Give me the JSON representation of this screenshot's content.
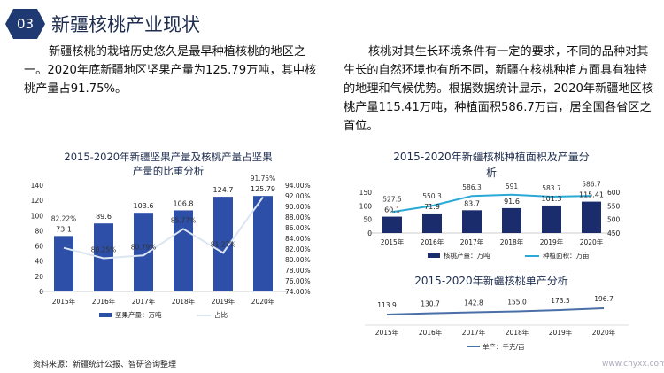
{
  "header": {
    "number": "03",
    "title": "新疆核桃产业现状"
  },
  "paragraph_left": "新疆核桃的栽培历史悠久是最早种植核桃的地区之一。2020年底新疆地区坚果产量为125.79万吨，其中核桃产量占91.75%。",
  "paragraph_right": "核桃对其生长环境条件有一定的要求，不同的品种对其生长的自然环境也有所不同，新疆在核桃种植方面具有独特的地理和气候优势。根据数据统计显示，2020年新疆地区核桃产量115.41万吨，种植面积586.7万亩，居全国各省区之首位。",
  "footer": {
    "source": "资料来源：新疆统计公报、智研咨询整理",
    "site": "www.chyxx.com"
  },
  "colors": {
    "bar": "#2e4fa8",
    "bar_dark": "#1a2c6b",
    "line_light": "#dce6f2",
    "line_teal": "#29a9d6",
    "line_blue": "#4a6fa8"
  },
  "chart_data": [
    {
      "type": "bar",
      "title_lines": [
        "2015-2020年新疆坚果产量及核桃产量占坚果",
        "产量的比重分析"
      ],
      "categories": [
        "2015年",
        "2016年",
        "2017年",
        "2018年",
        "2019年",
        "2020年"
      ],
      "series": [
        {
          "name": "坚果产量：万吨",
          "type": "bar",
          "axis": "left",
          "values": [
            73.1,
            89.6,
            103.6,
            106.8,
            124.7,
            125.79
          ],
          "labels": [
            "73.1",
            "89.6",
            "103.6",
            "106.8",
            "124.7",
            "125.79"
          ]
        },
        {
          "name": "占比",
          "type": "line",
          "axis": "right",
          "values": [
            82.22,
            80.25,
            80.79,
            85.77,
            81.27,
            91.75
          ],
          "labels": [
            "82.22%",
            "80.25%",
            "80.79%",
            "85.77%",
            "81.27%",
            "91.75%"
          ]
        }
      ],
      "ylim": [
        0,
        140
      ],
      "yticks": [
        "0",
        "20",
        "40",
        "60",
        "80",
        "100",
        "120",
        "140"
      ],
      "y2lim": [
        74,
        94
      ],
      "y2ticks": [
        "74.00%",
        "76.00%",
        "78.00%",
        "80.00%",
        "82.00%",
        "84.00%",
        "86.00%",
        "88.00%",
        "90.00%",
        "92.00%",
        "94.00%"
      ]
    },
    {
      "type": "bar",
      "title_lines": [
        "2015-2020年新疆核桃种植面积及产量分",
        "析"
      ],
      "categories": [
        "2015年",
        "2016年",
        "2017年",
        "2018年",
        "2019年",
        "2020年"
      ],
      "series": [
        {
          "name": "核桃产量：万吨",
          "type": "bar",
          "axis": "left",
          "values": [
            60.1,
            71.9,
            83.7,
            91.6,
            101.3,
            115.41
          ],
          "labels": [
            "60.1",
            "71.9",
            "83.7",
            "91.6",
            "101.3",
            "115.41"
          ]
        },
        {
          "name": "种植面积：万亩",
          "type": "line",
          "axis": "right",
          "values": [
            527.5,
            550.3,
            586.3,
            591,
            583.7,
            586.7
          ],
          "labels": [
            "527.5",
            "550.3",
            "586.3",
            "591",
            "583.7",
            "586.7"
          ]
        }
      ],
      "ylim": [
        0,
        150
      ],
      "yticks": [
        "0",
        "50",
        "100",
        "150"
      ],
      "y2lim": [
        450,
        600
      ],
      "y2ticks": [
        "450",
        "500",
        "550",
        "600"
      ]
    },
    {
      "type": "line",
      "title_lines": [
        "2015-2020年新疆核桃单产分析"
      ],
      "categories": [
        "2015年",
        "2016年",
        "2017年",
        "2018年",
        "2019年",
        "2020年"
      ],
      "series": [
        {
          "name": "单产：千克/亩",
          "type": "line",
          "values": [
            113.9,
            130.7,
            142.8,
            155.0,
            173.5,
            196.7
          ],
          "labels": [
            "113.9",
            "130.7",
            "142.8",
            "155.0",
            "173.5",
            "196.7"
          ]
        }
      ]
    }
  ]
}
